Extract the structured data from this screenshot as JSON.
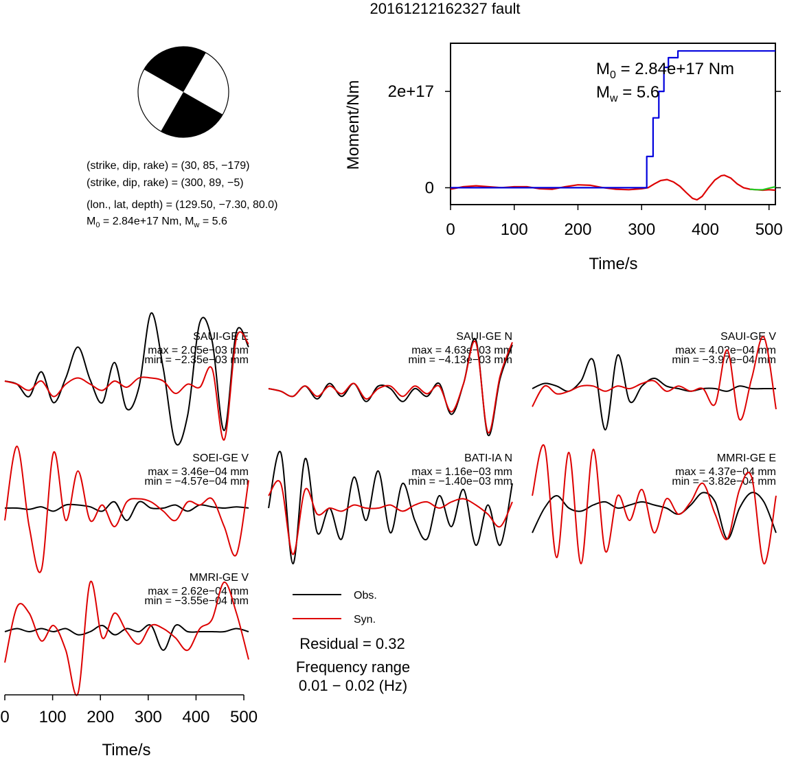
{
  "figure": {
    "title": "20161212162327 fault",
    "params": {
      "line1": "(strike, dip, rake) = (30, 85, −179)",
      "line2": "(strike, dip, rake) = (300, 89, −5)",
      "line3": "(lon., lat, depth) = (129.50, −7.30, 80.0)",
      "line4_m0": "M",
      "line4_m0_sub": "0",
      "line4_m0_rest": " = 2.84e+17 Nm, M",
      "line4_mw_sub": "w",
      "line4_mw_rest": " = 5.6"
    },
    "legend": {
      "obs": "Obs.",
      "syn": "Syn."
    },
    "residual": "Residual = 0.32",
    "freq_label": "Frequency range",
    "freq_range": "0.01 − 0.02 (Hz)"
  },
  "chart_data": [
    {
      "type": "line",
      "title": "",
      "xlabel": "Time/s",
      "ylabel": "Moment/Nm",
      "xlim": [
        0,
        510
      ],
      "ylim": [
        -3.5e+16,
        3e+17
      ],
      "xticks": [
        "0",
        "100",
        "200",
        "300",
        "400",
        "500"
      ],
      "yticks": [
        "0",
        "2e+17"
      ],
      "annotations": {
        "m0_main": "M",
        "m0_sub": "0",
        "m0_rest": " = 2.84e+17 Nm",
        "mw_main": "M",
        "mw_sub": "w",
        "mw_rest": " = 5.6"
      },
      "colors": {
        "cumulative": "#0000dd",
        "red": "#dd0000",
        "green": "#22cc22"
      },
      "series": [
        {
          "x": [
            0,
            308,
            308,
            318,
            318,
            327,
            327,
            335,
            335,
            342,
            342,
            357,
            357,
            510
          ],
          "y": [
            0,
            0,
            6.5e+16,
            6.5e+16,
            1.45e+17,
            1.45e+17,
            2e+17,
            2e+17,
            2.5e+17,
            2.5e+17,
            2.7e+17,
            2.7e+17,
            2.84e+17,
            2.84e+17
          ]
        },
        {
          "x": [
            0,
            20,
            40,
            60,
            80,
            100,
            120,
            140,
            160,
            180,
            200,
            220,
            240,
            260,
            280,
            300,
            310,
            320,
            330,
            340,
            350,
            360,
            370,
            380,
            387,
            395,
            405,
            415,
            425,
            430,
            440,
            450,
            460,
            470,
            480,
            490,
            500,
            510
          ],
          "y": [
            -3000000000000000.0,
            2000000000000000.0,
            4000000000000000.0,
            2000000000000000.0,
            0.0,
            2000000000000000.0,
            2000000000000000.0,
            -2000000000000000.0,
            -3000000000000000.0,
            2000000000000000.0,
            6000000000000000.0,
            5000000000000000.0,
            0.0,
            -3000000000000000.0,
            -4000000000000000.0,
            -2000000000000000.0,
            0.0,
            8000000000000000.0,
            1.5e+16,
            1.7e+16,
            1.2e+16,
            3000000000000000.0,
            -1e+16,
            -2.2e+16,
            -2.5e+16,
            -1.8e+16,
            0.0,
            1.6e+16,
            2.5e+16,
            2.6e+16,
            2e+16,
            8000000000000000.0,
            0.0,
            -3000000000000000.0,
            -4000000000000000.0,
            -5000000000000000.0,
            -4000000000000000.0,
            -5000000000000000.0
          ]
        },
        {
          "x": [
            470,
            480,
            490,
            500,
            510
          ],
          "y": [
            -3000000000000000.0,
            -4000000000000000.0,
            -4000000000000000.0,
            -1000000000000000.0,
            2000000000000000.0
          ]
        }
      ]
    },
    {
      "type": "line",
      "xlabel": "Time/s",
      "xlim": [
        0,
        510
      ],
      "xticks": [
        "0",
        "100",
        "200",
        "300",
        "400",
        "500"
      ],
      "colors": {
        "obs": "#000000",
        "syn": "#dd0000"
      },
      "panels": [
        {
          "station": "SAUI-GE E",
          "max": "max = 2.05e−03 mm",
          "min": "min = −2.35e−03 mm",
          "obs": [
            0.0,
            -0.05,
            -0.25,
            0.15,
            -0.35,
            0.05,
            0.55,
            0.02,
            -0.35,
            0.3,
            -0.45,
            -0.1,
            1.1,
            0.2,
            -1.0,
            -0.55,
            0.95,
            0.65,
            -0.8,
            0.8,
            0.55
          ],
          "syn": [
            0.0,
            -0.05,
            -0.15,
            0.0,
            -0.25,
            -0.05,
            0.05,
            -0.05,
            -0.15,
            0.0,
            -0.1,
            0.05,
            0.05,
            0.0,
            -0.2,
            -0.05,
            -0.1,
            0.2,
            -0.95,
            0.7,
            0.6
          ]
        },
        {
          "station": "SAUI-GE N",
          "max": "max = 4.63e−03 mm",
          "min": "min = −4.13e−03 mm",
          "obs": [
            0.0,
            -0.05,
            -0.15,
            0.05,
            -0.2,
            0.1,
            -0.15,
            0.1,
            -0.25,
            0.05,
            0.0,
            -0.25,
            0.0,
            -0.15,
            0.1,
            -0.5,
            0.1,
            0.95,
            -0.9,
            0.2,
            0.85
          ],
          "syn": [
            0.0,
            -0.05,
            -0.15,
            0.05,
            -0.15,
            0.05,
            -0.1,
            0.1,
            -0.2,
            0.0,
            0.05,
            -0.15,
            0.05,
            -0.1,
            0.05,
            -0.45,
            0.1,
            0.9,
            -0.85,
            0.25,
            0.9
          ]
        },
        {
          "station": "SAUI-GE V",
          "max": "max = 4.02e−04 mm",
          "min": "min = −3.97e−04 mm",
          "obs": [
            0.0,
            0.1,
            0.05,
            -0.05,
            0.15,
            0.55,
            -0.8,
            0.65,
            -0.25,
            0.05,
            0.2,
            0.05,
            0.0,
            -0.05,
            0.0,
            0.0,
            -0.05,
            0.05,
            0.0,
            0.0,
            0.0
          ],
          "syn": [
            -0.35,
            0.05,
            -0.1,
            -0.05,
            0.05,
            0.05,
            -0.05,
            0.05,
            0.0,
            0.1,
            0.15,
            -0.05,
            0.05,
            -0.05,
            0.0,
            -0.3,
            0.75,
            -0.6,
            0.2,
            1.0,
            -0.4
          ]
        },
        {
          "station": "SOEI-GE V",
          "max": "max = 3.46e−04 mm",
          "min": "min = −4.57e−04 mm",
          "obs": [
            0.0,
            0.0,
            -0.02,
            0.02,
            -0.05,
            0.05,
            0.05,
            0.02,
            -0.05,
            0.1,
            -0.2,
            0.1,
            0.0,
            0.0,
            0.05,
            -0.05,
            0.05,
            0.02,
            0.0,
            0.02,
            0.0
          ],
          "syn": [
            -0.2,
            1.0,
            -0.3,
            -1.0,
            0.9,
            -0.2,
            0.6,
            -0.2,
            0.05,
            -0.3,
            0.1,
            0.15,
            0.1,
            -0.05,
            -0.2,
            0.1,
            0.05,
            0.15,
            -0.3,
            -0.75,
            0.45
          ]
        },
        {
          "station": "BATI-IA N",
          "max": "max = 1.16e−03 mm",
          "min": "min = −1.40e−03 mm",
          "obs": [
            0.0,
            0.9,
            -0.9,
            0.8,
            -0.4,
            0.0,
            -0.5,
            0.5,
            -0.2,
            0.6,
            -0.4,
            0.4,
            -0.2,
            -0.5,
            0.2,
            -0.3,
            0.3,
            -0.6,
            0.05,
            -0.6,
            0.4
          ],
          "syn": [
            0.2,
            0.4,
            -0.75,
            0.3,
            -0.1,
            0.0,
            -0.05,
            0.05,
            0.0,
            0.0,
            0.05,
            -0.05,
            0.05,
            0.1,
            0.0,
            0.1,
            0.15,
            0.05,
            -0.1,
            -0.3,
            0.1
          ]
        },
        {
          "station": "MMRI-GE E",
          "max": "max = 4.37e−04 mm",
          "min": "min = −3.82e−04 mm",
          "obs": [
            -0.4,
            0.0,
            0.2,
            0.0,
            -0.05,
            0.05,
            0.1,
            0.0,
            0.05,
            0.1,
            0.05,
            0.0,
            -0.1,
            0.05,
            0.25,
            0.1,
            -0.5,
            0.0,
            0.25,
            0.1,
            -0.4
          ],
          "syn": [
            0.2,
            1.0,
            -0.8,
            0.9,
            -0.9,
            0.95,
            -0.7,
            0.2,
            -0.2,
            0.3,
            -0.4,
            0.15,
            -0.1,
            0.1,
            0.4,
            -0.1,
            -0.5,
            0.3,
            0.5,
            -0.9,
            0.2
          ]
        },
        {
          "station": "MMRI-GE V",
          "max": "max = 2.62e−04 mm",
          "min": "min = −3.55e−04 mm",
          "obs": [
            0.0,
            0.05,
            0.0,
            0.05,
            0.0,
            0.05,
            -0.05,
            0.0,
            0.1,
            -0.05,
            0.05,
            0.0,
            0.1,
            -0.3,
            0.1,
            0.0,
            0.0,
            0.0,
            0.0,
            0.05,
            0.0
          ],
          "syn": [
            -0.5,
            0.4,
            0.3,
            -0.15,
            0.1,
            -0.3,
            -1.0,
            0.8,
            -0.1,
            0.3,
            0.0,
            -0.2,
            0.1,
            0.05,
            -0.1,
            -0.3,
            0.05,
            0.2,
            0.8,
            0.3,
            -0.45
          ]
        }
      ]
    }
  ]
}
